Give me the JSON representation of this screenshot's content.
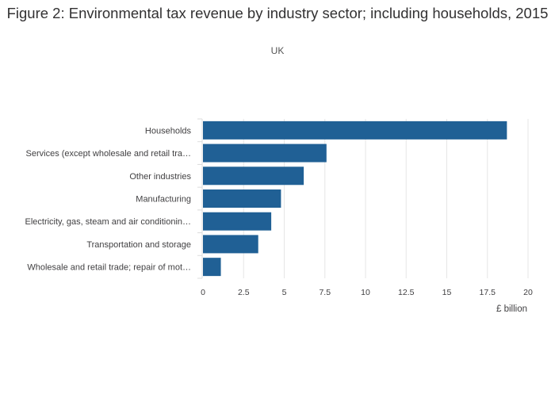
{
  "chart_data": {
    "type": "bar",
    "orientation": "horizontal",
    "title": "Figure 2: Environmental tax revenue by industry sector; including households, 2015",
    "subtitle": "UK",
    "xlabel": "£ billion",
    "ylabel": "",
    "xlim": [
      0,
      20
    ],
    "x_ticks": [
      0,
      2.5,
      5,
      7.5,
      10,
      12.5,
      15,
      17.5,
      20
    ],
    "x_tick_labels": [
      "0",
      "2.5",
      "5",
      "7.5",
      "10",
      "12.5",
      "15",
      "17.5",
      "20"
    ],
    "grid": true,
    "legend": false,
    "bar_color": "#206095",
    "categories": [
      "Households",
      "Services (except wholesale and retail tra…",
      "Other industries",
      "Manufacturing",
      "Electricity, gas, steam and air conditionin…",
      "Transportation and storage",
      "Wholesale and retail trade; repair of mot…"
    ],
    "values": [
      18.7,
      7.6,
      6.2,
      4.8,
      4.2,
      3.4,
      1.1
    ]
  }
}
